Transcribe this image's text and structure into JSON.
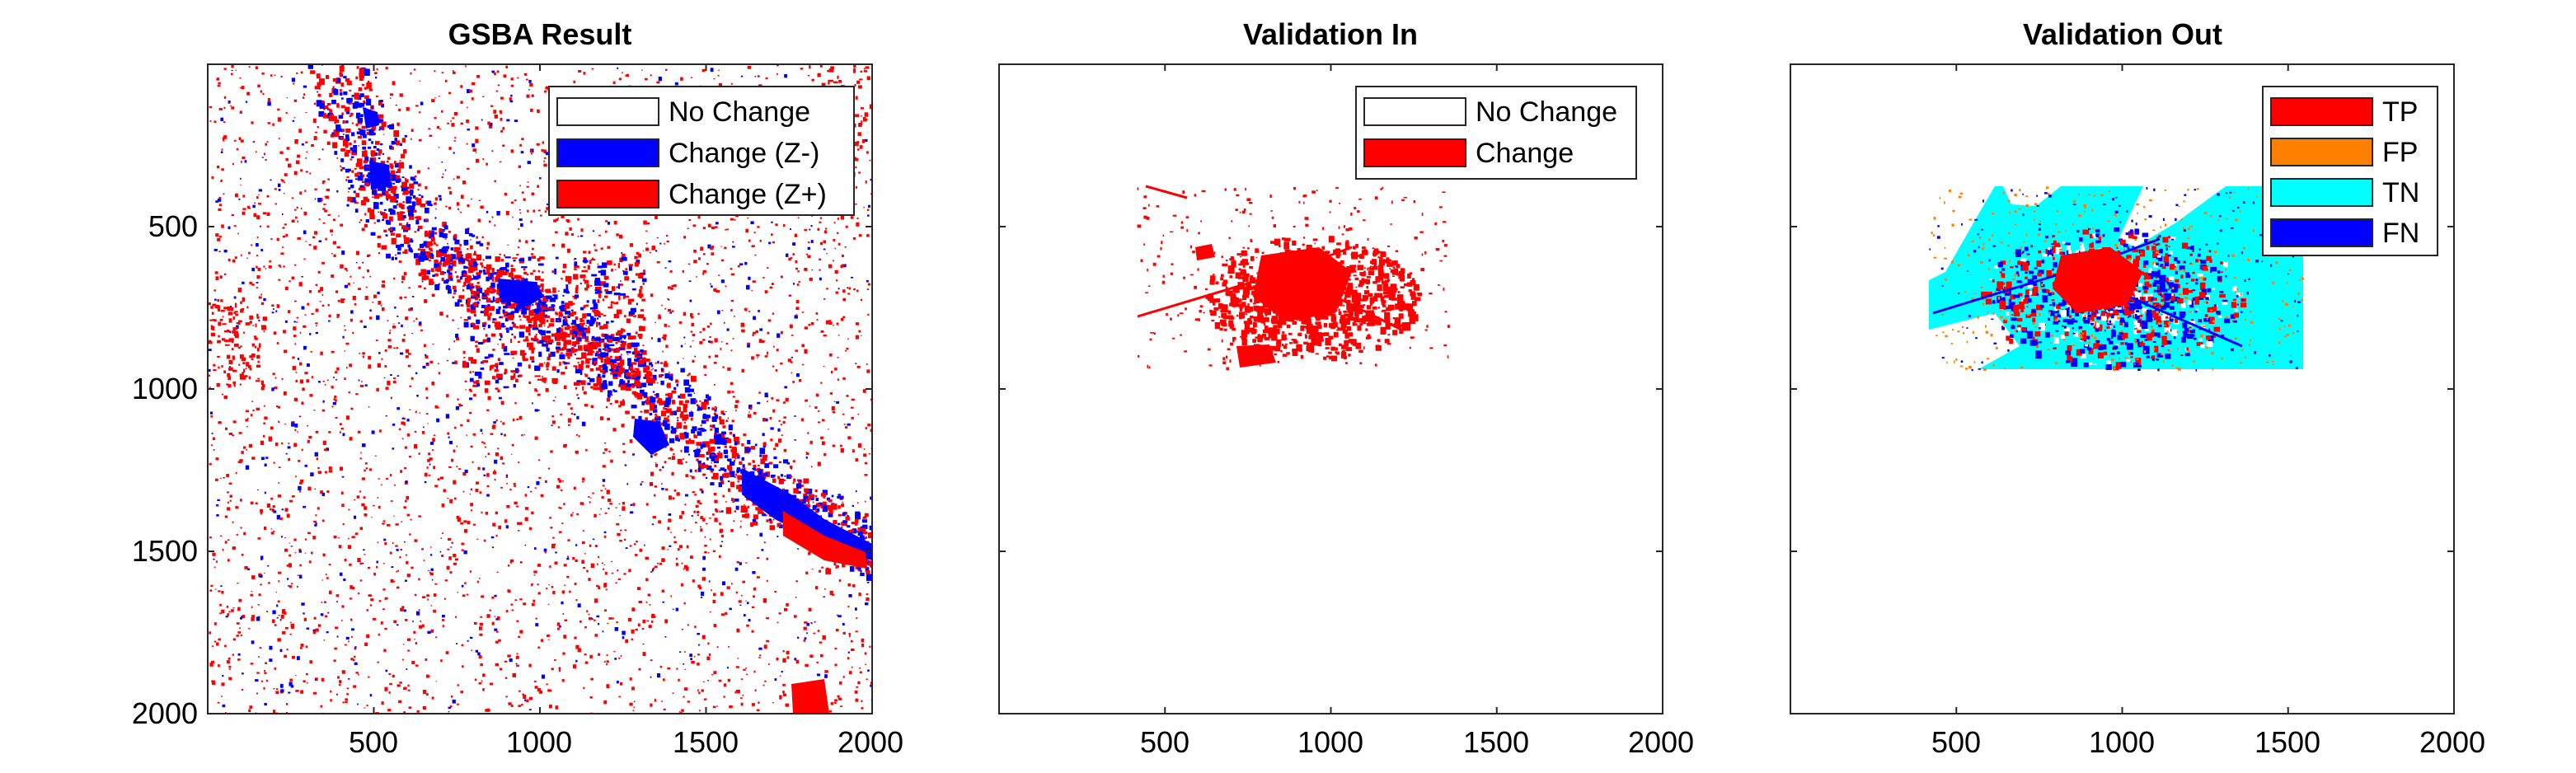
{
  "figure": {
    "panels": [
      {
        "id": "gsba",
        "title": "GSBA Result",
        "x_ticks": [
          "500",
          "1000",
          "1500",
          "2000"
        ],
        "y_ticks": [
          "500",
          "1000",
          "1500",
          "2000"
        ],
        "legend": [
          {
            "label": "No Change",
            "color": "#ffffff"
          },
          {
            "label": "Change (Z-)",
            "color": "#0000ff"
          },
          {
            "label": "Change (Z+)",
            "color": "#ff0000"
          }
        ]
      },
      {
        "id": "validation-in",
        "title": "Validation In",
        "x_ticks": [
          "500",
          "1000",
          "1500",
          "2000"
        ],
        "legend": [
          {
            "label": "No Change",
            "color": "#ffffff"
          },
          {
            "label": "Change",
            "color": "#ff0000"
          }
        ]
      },
      {
        "id": "validation-out",
        "title": "Validation Out",
        "x_ticks": [
          "500",
          "1000",
          "1500",
          "2000"
        ],
        "legend": [
          {
            "label": "TP",
            "color": "#ff0000"
          },
          {
            "label": "FP",
            "color": "#ff8000"
          },
          {
            "label": "TN",
            "color": "#00ffff"
          },
          {
            "label": "FN",
            "color": "#0000ff"
          }
        ]
      }
    ],
    "colors": {
      "red": "#ff0000",
      "blue": "#0000ff",
      "cyan": "#00ffff",
      "orange": "#ff8000",
      "axis": "#262626"
    }
  }
}
